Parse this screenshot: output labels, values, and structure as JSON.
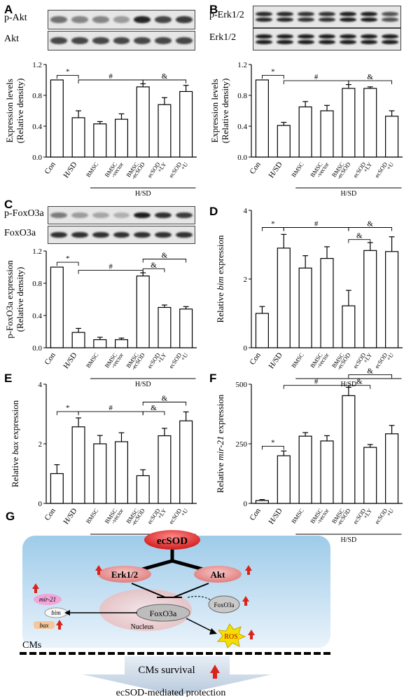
{
  "panels": [
    {
      "letter": "A",
      "blots": [
        {
          "name": "p-Akt",
          "intensity": [
            0.55,
            0.45,
            0.45,
            0.35,
            0.9,
            0.75,
            0.8
          ]
        },
        {
          "name": "Akt",
          "intensity": [
            0.75,
            0.75,
            0.75,
            0.75,
            0.75,
            0.75,
            0.75
          ]
        }
      ],
      "chart_data": {
        "type": "bar",
        "categories": [
          "Con",
          "H/SD",
          "BMSC",
          "BMSC-vector",
          "BMSC-ecSOD",
          "ecSOD+LY",
          "ecSOD+U"
        ],
        "tick_labels": [
          [
            "Con"
          ],
          [
            "H/SD"
          ],
          [
            "BMSC"
          ],
          [
            "BMSC",
            "-vector"
          ],
          [
            "BMSC",
            "-ecSOD"
          ],
          [
            "ecSOD",
            "+LY"
          ],
          [
            "ecSOD",
            "+U"
          ]
        ],
        "values": [
          1.0,
          0.51,
          0.43,
          0.49,
          0.91,
          0.68,
          0.85
        ],
        "errors": [
          0,
          0.09,
          0.03,
          0.07,
          0.04,
          0.09,
          0.08
        ],
        "ylabel": [
          "Expression levels",
          "(Relative density)"
        ],
        "ylim": [
          0,
          1.2
        ],
        "yticks": [
          "0.0",
          "0.4",
          "0.8",
          "1.2"
        ],
        "group_label": "H/SD",
        "annotations": [
          {
            "symbol": "*",
            "from": 0,
            "to": 1,
            "level": 1.06
          },
          {
            "symbol": "#",
            "from": 1,
            "to": 4,
            "level": 1.0
          },
          {
            "symbol": "&",
            "from": 4,
            "to": 6,
            "level": 1.0
          }
        ]
      }
    },
    {
      "letter": "B",
      "blots": [
        {
          "name": "p-Erk1/2",
          "intensity": [
            0.9,
            0.9,
            0.85,
            0.85,
            0.95,
            0.95,
            0.7
          ],
          "double": true
        },
        {
          "name": "Erk1/2",
          "intensity": [
            0.95,
            0.95,
            0.95,
            0.95,
            0.95,
            0.95,
            0.95
          ],
          "double": true
        }
      ],
      "chart_data": {
        "type": "bar",
        "categories": [
          "Con",
          "H/SD",
          "BMSC",
          "BMSC-vector",
          "BMSC-ecSOD",
          "ecSOD+LY",
          "ecSOD+U"
        ],
        "tick_labels": [
          [
            "Con"
          ],
          [
            "H/SD"
          ],
          [
            "BMSC"
          ],
          [
            "BMSC",
            "-vector"
          ],
          [
            "BMSC",
            "-ecSOD"
          ],
          [
            "ecSOD",
            "+LY"
          ],
          [
            "ecSOD",
            "+U"
          ]
        ],
        "values": [
          1.0,
          0.41,
          0.65,
          0.6,
          0.89,
          0.89,
          0.53
        ],
        "errors": [
          0,
          0.04,
          0.07,
          0.07,
          0.05,
          0.02,
          0.07
        ],
        "ylabel": [
          "Expression levels",
          "(Relative density)"
        ],
        "ylim": [
          0,
          1.2
        ],
        "yticks": [
          "0.0",
          "0.4",
          "0.8",
          "1.2"
        ],
        "group_label": "H/SD",
        "annotations": [
          {
            "symbol": "*",
            "from": 0,
            "to": 1,
            "level": 1.06
          },
          {
            "symbol": "#",
            "from": 1,
            "to": 4,
            "level": 0.99
          },
          {
            "symbol": "&",
            "from": 4,
            "to": 6,
            "level": 0.99
          }
        ]
      }
    },
    {
      "letter": "C",
      "blots": [
        {
          "name": "p-FoxO3a",
          "intensity": [
            0.5,
            0.35,
            0.3,
            0.25,
            0.95,
            0.85,
            0.8
          ]
        },
        {
          "name": "FoxO3a",
          "intensity": [
            0.85,
            0.85,
            0.85,
            0.85,
            0.85,
            0.85,
            0.85
          ]
        }
      ],
      "chart_data": {
        "type": "bar",
        "categories": [
          "Con",
          "H/SD",
          "BMSC",
          "BMSC-vector",
          "BMSC-ecSOD",
          "ecSOD+LY",
          "ecSOD+U"
        ],
        "tick_labels": [
          [
            "Con"
          ],
          [
            "H/SD"
          ],
          [
            "BMSC"
          ],
          [
            "BMSC",
            "-vector"
          ],
          [
            "BMSC",
            "-ecSOD"
          ],
          [
            "ecSOD",
            "+LY"
          ],
          [
            "ecSOD",
            "+U"
          ]
        ],
        "values": [
          1.0,
          0.19,
          0.1,
          0.1,
          0.89,
          0.5,
          0.48
        ],
        "errors": [
          0,
          0.05,
          0.03,
          0.02,
          0.04,
          0.03,
          0.03
        ],
        "ylabel": [
          "p-FoxO3a expression",
          "(Relative density)"
        ],
        "ylim": [
          0,
          1.2
        ],
        "yticks": [
          "0.0",
          "0.4",
          "0.8",
          "1.2"
        ],
        "group_label": "H/SD",
        "annotations": [
          {
            "symbol": "*",
            "from": 0,
            "to": 1,
            "level": 1.06
          },
          {
            "symbol": "#",
            "from": 1,
            "to": 4,
            "level": 0.96
          },
          {
            "symbol": "&",
            "from": 4,
            "to": 6,
            "level": 1.1
          },
          {
            "symbol": "&",
            "from": 4,
            "to": 5,
            "level": 0.98
          }
        ]
      }
    },
    {
      "letter": "D",
      "chart_data": {
        "type": "bar",
        "categories": [
          "Con",
          "H/SD",
          "BMSC",
          "BMSC-vector",
          "BMSC-ecSOD",
          "ecSOD+LY",
          "ecSOD+U"
        ],
        "tick_labels": [
          [
            "Con"
          ],
          [
            "H/SD"
          ],
          [
            "BMSC"
          ],
          [
            "BMSC",
            "-vector"
          ],
          [
            "BMSC",
            "-ecSOD"
          ],
          [
            "ecSOD",
            "+LY"
          ],
          [
            "ecSOD",
            "+U"
          ]
        ],
        "values": [
          1.0,
          2.9,
          2.32,
          2.6,
          1.22,
          2.83,
          2.8
        ],
        "errors": [
          0.2,
          0.4,
          0.36,
          0.34,
          0.45,
          0.23,
          0.43
        ],
        "ylabel": [
          "Relative |bim| expression"
        ],
        "ylim": [
          0,
          4
        ],
        "yticks": [
          "0",
          "2",
          "4"
        ],
        "group_label": "H/SD",
        "annotations": [
          {
            "symbol": "*",
            "from": 0,
            "to": 1,
            "level": 3.5
          },
          {
            "symbol": "#",
            "from": 1,
            "to": 4,
            "level": 3.5
          },
          {
            "symbol": "&",
            "from": 4,
            "to": 6,
            "level": 3.5
          },
          {
            "symbol": "&",
            "from": 4,
            "to": 5,
            "level": 3.15
          }
        ]
      }
    },
    {
      "letter": "E",
      "chart_data": {
        "type": "bar",
        "categories": [
          "Con",
          "H/SD",
          "BMSC",
          "BMSC-vector",
          "BMSC-ecSOD",
          "ecSOD+LY",
          "ecSOD+U"
        ],
        "tick_labels": [
          [
            "Con"
          ],
          [
            "H/SD"
          ],
          [
            "BMSC"
          ],
          [
            "BMSC",
            "-vector"
          ],
          [
            "BMSC",
            "-ecSOD"
          ],
          [
            "ecSOD",
            "+LY"
          ],
          [
            "ecSOD",
            "+U"
          ]
        ],
        "values": [
          1.0,
          2.57,
          2.0,
          2.07,
          0.93,
          2.27,
          2.77
        ],
        "errors": [
          0.3,
          0.3,
          0.28,
          0.3,
          0.2,
          0.25,
          0.3
        ],
        "ylabel": [
          "Relative |bax| expression"
        ],
        "ylim": [
          0,
          4
        ],
        "yticks": [
          "0",
          "2",
          "4"
        ],
        "group_label": "H/SD",
        "annotations": [
          {
            "symbol": "*",
            "from": 0,
            "to": 1,
            "level": 3.08
          },
          {
            "symbol": "#",
            "from": 1,
            "to": 4,
            "level": 3.08
          },
          {
            "symbol": "&",
            "from": 4,
            "to": 6,
            "level": 3.4
          },
          {
            "symbol": "&",
            "from": 4,
            "to": 5,
            "level": 3.08
          }
        ]
      }
    },
    {
      "letter": "F",
      "chart_data": {
        "type": "bar",
        "categories": [
          "Con",
          "H/SD",
          "BMSC",
          "BMSC-vector",
          "BMSC-ecSOD",
          "ecSOD+LY",
          "ecSOD+U"
        ],
        "tick_labels": [
          [
            "Con"
          ],
          [
            "H/SD"
          ],
          [
            "BMSC"
          ],
          [
            "BMSC",
            "-vector"
          ],
          [
            "BMSC",
            "-ecSOD"
          ],
          [
            "ecSOD",
            "+LY"
          ],
          [
            "ecSOD",
            "+U"
          ]
        ],
        "values": [
          12,
          200,
          282,
          262,
          452,
          235,
          292
        ],
        "errors": [
          4,
          20,
          15,
          22,
          35,
          12,
          35
        ],
        "ylabel": [
          "Relative |mir-21| expression"
        ],
        "ylim": [
          0,
          500
        ],
        "yticks": [
          "0",
          "250",
          "500"
        ],
        "group_label": "H/SD",
        "annotations": [
          {
            "symbol": "*",
            "from": 0,
            "to": 1,
            "level": 240
          },
          {
            "symbol": "#",
            "from": 1,
            "to": 4,
            "level": 495
          },
          {
            "symbol": "&",
            "from": 4,
            "to": 6,
            "level": 540
          },
          {
            "symbol": "&",
            "from": 4,
            "to": 5,
            "level": 495
          }
        ]
      }
    }
  ],
  "schematic": {
    "letter": "G",
    "ecsod": "ecSOD",
    "erk": "Erk1/2",
    "akt": "Akt",
    "mir21": "mir-21",
    "foxo3a_small": "FoxO3a",
    "foxo3a": "FoxO3a",
    "bim": "bim",
    "bax": "bax",
    "nucleus": "Nucleus",
    "ros": "ROS",
    "cms": "CMs",
    "survival": "CMs survival",
    "protection": "ecSOD-mediated protection"
  }
}
